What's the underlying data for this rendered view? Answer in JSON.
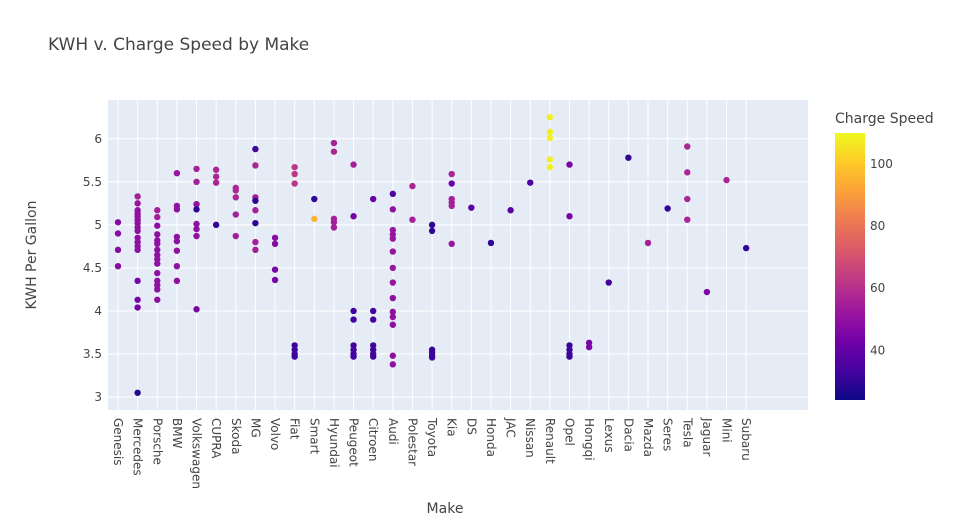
{
  "chart_data": {
    "type": "scatter",
    "title": "KWH v. Charge Speed by Make",
    "xlabel": "Make",
    "ylabel": "KWH Per Gallon",
    "ylim": [
      2.85,
      6.45
    ],
    "yticks": [
      3,
      3.5,
      4,
      4.5,
      5,
      5.5,
      6
    ],
    "grid": true,
    "colorbar": {
      "title": "Charge Speed",
      "range": [
        24,
        110
      ],
      "ticks": [
        40,
        60,
        80,
        100
      ],
      "colorscale": "plasma"
    },
    "categories": [
      "Genesis",
      "Mercedes",
      "Porsche",
      "BMW",
      "Volkswagen",
      "CUPRA",
      "Skoda",
      "MG",
      "Volvo",
      "Fiat",
      "Smart",
      "Hyundai",
      "Peugeot",
      "Citroen",
      "Audi",
      "Polestar",
      "Toyota",
      "Kia",
      "DS",
      "Honda",
      "JAC",
      "Nissan",
      "Renault",
      "Opel",
      "Hongqi",
      "Lexus",
      "Dacia",
      "Mazda",
      "Seres",
      "Tesla",
      "Jaguar",
      "Mini",
      "Subaru"
    ],
    "points": [
      {
        "make": "Genesis",
        "y": 5.03,
        "c": 48
      },
      {
        "make": "Genesis",
        "y": 4.9,
        "c": 48
      },
      {
        "make": "Genesis",
        "y": 4.71,
        "c": 48
      },
      {
        "make": "Genesis",
        "y": 4.52,
        "c": 48
      },
      {
        "make": "Mercedes",
        "y": 5.33,
        "c": 55
      },
      {
        "make": "Mercedes",
        "y": 5.25,
        "c": 52
      },
      {
        "make": "Mercedes",
        "y": 5.17,
        "c": 50
      },
      {
        "make": "Mercedes",
        "y": 5.13,
        "c": 50
      },
      {
        "make": "Mercedes",
        "y": 5.1,
        "c": 50
      },
      {
        "make": "Mercedes",
        "y": 5.06,
        "c": 50
      },
      {
        "make": "Mercedes",
        "y": 5.02,
        "c": 50
      },
      {
        "make": "Mercedes",
        "y": 4.97,
        "c": 50
      },
      {
        "make": "Mercedes",
        "y": 4.93,
        "c": 50
      },
      {
        "make": "Mercedes",
        "y": 4.85,
        "c": 50
      },
      {
        "make": "Mercedes",
        "y": 4.8,
        "c": 50
      },
      {
        "make": "Mercedes",
        "y": 4.75,
        "c": 50
      },
      {
        "make": "Mercedes",
        "y": 4.71,
        "c": 50
      },
      {
        "make": "Mercedes",
        "y": 4.35,
        "c": 45
      },
      {
        "make": "Mercedes",
        "y": 4.13,
        "c": 45
      },
      {
        "make": "Mercedes",
        "y": 4.04,
        "c": 45
      },
      {
        "make": "Mercedes",
        "y": 3.05,
        "c": 28
      },
      {
        "make": "Porsche",
        "y": 5.17,
        "c": 55
      },
      {
        "make": "Porsche",
        "y": 5.09,
        "c": 55
      },
      {
        "make": "Porsche",
        "y": 4.99,
        "c": 50
      },
      {
        "make": "Porsche",
        "y": 4.89,
        "c": 50
      },
      {
        "make": "Porsche",
        "y": 4.82,
        "c": 50
      },
      {
        "make": "Porsche",
        "y": 4.78,
        "c": 50
      },
      {
        "make": "Porsche",
        "y": 4.71,
        "c": 50
      },
      {
        "make": "Porsche",
        "y": 4.65,
        "c": 50
      },
      {
        "make": "Porsche",
        "y": 4.6,
        "c": 50
      },
      {
        "make": "Porsche",
        "y": 4.55,
        "c": 50
      },
      {
        "make": "Porsche",
        "y": 4.44,
        "c": 50
      },
      {
        "make": "Porsche",
        "y": 4.35,
        "c": 50
      },
      {
        "make": "Porsche",
        "y": 4.3,
        "c": 50
      },
      {
        "make": "Porsche",
        "y": 4.25,
        "c": 50
      },
      {
        "make": "Porsche",
        "y": 4.13,
        "c": 50
      },
      {
        "make": "BMW",
        "y": 5.6,
        "c": 52
      },
      {
        "make": "BMW",
        "y": 5.22,
        "c": 50
      },
      {
        "make": "BMW",
        "y": 5.18,
        "c": 50
      },
      {
        "make": "BMW",
        "y": 4.86,
        "c": 50
      },
      {
        "make": "BMW",
        "y": 4.81,
        "c": 50
      },
      {
        "make": "BMW",
        "y": 4.7,
        "c": 50
      },
      {
        "make": "BMW",
        "y": 4.52,
        "c": 50
      },
      {
        "make": "BMW",
        "y": 4.35,
        "c": 50
      },
      {
        "make": "Volkswagen",
        "y": 5.65,
        "c": 55
      },
      {
        "make": "Volkswagen",
        "y": 5.5,
        "c": 55
      },
      {
        "make": "Volkswagen",
        "y": 5.24,
        "c": 50
      },
      {
        "make": "Volkswagen",
        "y": 5.18,
        "c": 30
      },
      {
        "make": "Volkswagen",
        "y": 5.01,
        "c": 50
      },
      {
        "make": "Volkswagen",
        "y": 4.95,
        "c": 50
      },
      {
        "make": "Volkswagen",
        "y": 4.87,
        "c": 50
      },
      {
        "make": "Volkswagen",
        "y": 4.02,
        "c": 45
      },
      {
        "make": "CUPRA",
        "y": 5.64,
        "c": 57
      },
      {
        "make": "CUPRA",
        "y": 5.56,
        "c": 57
      },
      {
        "make": "CUPRA",
        "y": 5.49,
        "c": 57
      },
      {
        "make": "CUPRA",
        "y": 5.0,
        "c": 30
      },
      {
        "make": "Skoda",
        "y": 5.43,
        "c": 57
      },
      {
        "make": "Skoda",
        "y": 5.4,
        "c": 57
      },
      {
        "make": "Skoda",
        "y": 5.32,
        "c": 57
      },
      {
        "make": "Skoda",
        "y": 5.12,
        "c": 55
      },
      {
        "make": "Skoda",
        "y": 4.87,
        "c": 55
      },
      {
        "make": "MG",
        "y": 5.88,
        "c": 33
      },
      {
        "make": "MG",
        "y": 5.69,
        "c": 57
      },
      {
        "make": "MG",
        "y": 5.32,
        "c": 55
      },
      {
        "make": "MG",
        "y": 5.28,
        "c": 30
      },
      {
        "make": "MG",
        "y": 5.17,
        "c": 55
      },
      {
        "make": "MG",
        "y": 5.02,
        "c": 30
      },
      {
        "make": "MG",
        "y": 4.8,
        "c": 55
      },
      {
        "make": "MG",
        "y": 4.71,
        "c": 55
      },
      {
        "make": "Volvo",
        "y": 4.85,
        "c": 48
      },
      {
        "make": "Volvo",
        "y": 4.78,
        "c": 48
      },
      {
        "make": "Volvo",
        "y": 4.48,
        "c": 45
      },
      {
        "make": "Volvo",
        "y": 4.36,
        "c": 45
      },
      {
        "make": "Fiat",
        "y": 5.67,
        "c": 62
      },
      {
        "make": "Fiat",
        "y": 5.59,
        "c": 62
      },
      {
        "make": "Fiat",
        "y": 5.48,
        "c": 62
      },
      {
        "make": "Fiat",
        "y": 3.6,
        "c": 32
      },
      {
        "make": "Fiat",
        "y": 3.55,
        "c": 32
      },
      {
        "make": "Fiat",
        "y": 3.5,
        "c": 32
      },
      {
        "make": "Fiat",
        "y": 3.47,
        "c": 32
      },
      {
        "make": "Smart",
        "y": 5.3,
        "c": 30
      },
      {
        "make": "Smart",
        "y": 5.07,
        "c": 95
      },
      {
        "make": "Hyundai",
        "y": 5.95,
        "c": 55
      },
      {
        "make": "Hyundai",
        "y": 5.85,
        "c": 57
      },
      {
        "make": "Hyundai",
        "y": 5.07,
        "c": 55
      },
      {
        "make": "Hyundai",
        "y": 5.03,
        "c": 55
      },
      {
        "make": "Hyundai",
        "y": 4.97,
        "c": 55
      },
      {
        "make": "Peugeot",
        "y": 5.7,
        "c": 55
      },
      {
        "make": "Peugeot",
        "y": 5.1,
        "c": 45
      },
      {
        "make": "Peugeot",
        "y": 4.0,
        "c": 33
      },
      {
        "make": "Peugeot",
        "y": 3.9,
        "c": 33
      },
      {
        "make": "Peugeot",
        "y": 3.6,
        "c": 33
      },
      {
        "make": "Peugeot",
        "y": 3.55,
        "c": 33
      },
      {
        "make": "Peugeot",
        "y": 3.5,
        "c": 33
      },
      {
        "make": "Peugeot",
        "y": 3.47,
        "c": 33
      },
      {
        "make": "Citroen",
        "y": 5.3,
        "c": 40
      },
      {
        "make": "Citroen",
        "y": 4.0,
        "c": 33
      },
      {
        "make": "Citroen",
        "y": 3.9,
        "c": 33
      },
      {
        "make": "Citroen",
        "y": 3.6,
        "c": 33
      },
      {
        "make": "Citroen",
        "y": 3.55,
        "c": 33
      },
      {
        "make": "Citroen",
        "y": 3.5,
        "c": 33
      },
      {
        "make": "Citroen",
        "y": 3.47,
        "c": 33
      },
      {
        "make": "Audi",
        "y": 5.36,
        "c": 35
      },
      {
        "make": "Audi",
        "y": 5.18,
        "c": 50
      },
      {
        "make": "Audi",
        "y": 4.94,
        "c": 52
      },
      {
        "make": "Audi",
        "y": 4.89,
        "c": 52
      },
      {
        "make": "Audi",
        "y": 4.84,
        "c": 52
      },
      {
        "make": "Audi",
        "y": 4.69,
        "c": 52
      },
      {
        "make": "Audi",
        "y": 4.5,
        "c": 52
      },
      {
        "make": "Audi",
        "y": 4.33,
        "c": 52
      },
      {
        "make": "Audi",
        "y": 4.15,
        "c": 50
      },
      {
        "make": "Audi",
        "y": 3.99,
        "c": 50
      },
      {
        "make": "Audi",
        "y": 3.93,
        "c": 50
      },
      {
        "make": "Audi",
        "y": 3.84,
        "c": 50
      },
      {
        "make": "Audi",
        "y": 3.48,
        "c": 50
      },
      {
        "make": "Audi",
        "y": 3.38,
        "c": 50
      },
      {
        "make": "Polestar",
        "y": 5.45,
        "c": 57
      },
      {
        "make": "Polestar",
        "y": 5.06,
        "c": 55
      },
      {
        "make": "Toyota",
        "y": 5.0,
        "c": 30
      },
      {
        "make": "Toyota",
        "y": 4.93,
        "c": 30
      },
      {
        "make": "Toyota",
        "y": 3.55,
        "c": 32
      },
      {
        "make": "Toyota",
        "y": 3.52,
        "c": 32
      },
      {
        "make": "Toyota",
        "y": 3.49,
        "c": 32
      },
      {
        "make": "Toyota",
        "y": 3.46,
        "c": 32
      },
      {
        "make": "Kia",
        "y": 5.59,
        "c": 57
      },
      {
        "make": "Kia",
        "y": 5.48,
        "c": 42
      },
      {
        "make": "Kia",
        "y": 5.3,
        "c": 55
      },
      {
        "make": "Kia",
        "y": 5.26,
        "c": 55
      },
      {
        "make": "Kia",
        "y": 5.22,
        "c": 55
      },
      {
        "make": "Kia",
        "y": 4.78,
        "c": 52
      },
      {
        "make": "DS",
        "y": 5.2,
        "c": 38
      },
      {
        "make": "Honda",
        "y": 4.79,
        "c": 30
      },
      {
        "make": "JAC",
        "y": 5.17,
        "c": 38
      },
      {
        "make": "Nissan",
        "y": 5.49,
        "c": 35
      },
      {
        "make": "Renault",
        "y": 6.25,
        "c": 108
      },
      {
        "make": "Renault",
        "y": 6.08,
        "c": 108
      },
      {
        "make": "Renault",
        "y": 6.01,
        "c": 108
      },
      {
        "make": "Renault",
        "y": 5.76,
        "c": 108
      },
      {
        "make": "Renault",
        "y": 5.67,
        "c": 108
      },
      {
        "make": "Opel",
        "y": 5.7,
        "c": 45
      },
      {
        "make": "Opel",
        "y": 5.1,
        "c": 45
      },
      {
        "make": "Opel",
        "y": 3.6,
        "c": 32
      },
      {
        "make": "Opel",
        "y": 3.55,
        "c": 32
      },
      {
        "make": "Opel",
        "y": 3.5,
        "c": 32
      },
      {
        "make": "Opel",
        "y": 3.47,
        "c": 32
      },
      {
        "make": "Hongqi",
        "y": 3.63,
        "c": 45
      },
      {
        "make": "Hongqi",
        "y": 3.58,
        "c": 45
      },
      {
        "make": "Lexus",
        "y": 4.33,
        "c": 33
      },
      {
        "make": "Dacia",
        "y": 5.78,
        "c": 30
      },
      {
        "make": "Mazda",
        "y": 4.79,
        "c": 55
      },
      {
        "make": "Seres",
        "y": 5.19,
        "c": 30
      },
      {
        "make": "Tesla",
        "y": 5.91,
        "c": 57
      },
      {
        "make": "Tesla",
        "y": 5.61,
        "c": 57
      },
      {
        "make": "Tesla",
        "y": 5.3,
        "c": 57
      },
      {
        "make": "Tesla",
        "y": 5.06,
        "c": 57
      },
      {
        "make": "Jaguar",
        "y": 4.22,
        "c": 45
      },
      {
        "make": "Mini",
        "y": 5.52,
        "c": 57
      },
      {
        "make": "Subaru",
        "y": 4.73,
        "c": 30
      }
    ]
  }
}
